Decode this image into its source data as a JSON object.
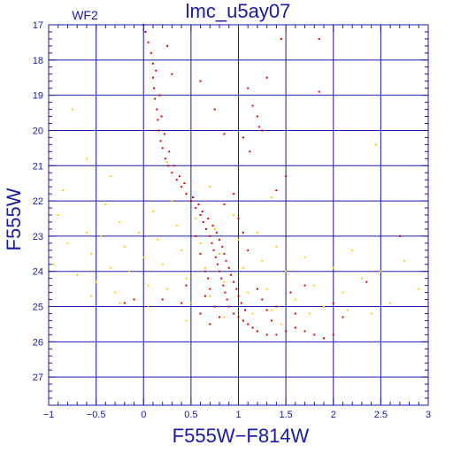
{
  "chart_data": {
    "type": "scatter",
    "title": "lmc_u5ay07",
    "panel_label": "WF2",
    "xlabel": "F555W−F814W",
    "ylabel": "F555W",
    "xlim": [
      -1,
      3
    ],
    "ylim": [
      27.8,
      17
    ],
    "y_inverted": true,
    "grid": true,
    "x_ticks": [
      -1,
      -0.5,
      0,
      0.5,
      1,
      1.5,
      2,
      2.5,
      3
    ],
    "x_tick_labels": [
      "−1",
      "−0.5",
      "0",
      "0.5",
      "1",
      "1.5",
      "2",
      "2.5",
      "3"
    ],
    "y_ticks": [
      17,
      18,
      19,
      20,
      21,
      22,
      23,
      24,
      25,
      26,
      27
    ],
    "y_tick_labels": [
      "17",
      "18",
      "19",
      "20",
      "21",
      "22",
      "23",
      "24",
      "25",
      "26",
      "27"
    ],
    "series": [
      {
        "color": "#ffd000",
        "marker": "dot",
        "points": [
          [
            -0.85,
            21.7
          ],
          [
            -0.9,
            22.4
          ],
          [
            -0.8,
            23.2
          ],
          [
            -0.95,
            23.8
          ],
          [
            -0.7,
            24.1
          ],
          [
            -0.6,
            22.9
          ],
          [
            -0.55,
            23.5
          ],
          [
            -0.5,
            24.3
          ],
          [
            -0.4,
            22.1
          ],
          [
            -0.45,
            23.0
          ],
          [
            -0.35,
            23.9
          ],
          [
            -0.3,
            24.6
          ],
          [
            -0.25,
            22.6
          ],
          [
            -0.2,
            23.3
          ],
          [
            -0.15,
            24.0
          ],
          [
            -0.1,
            24.8
          ],
          [
            -0.05,
            22.9
          ],
          [
            0.0,
            23.6
          ],
          [
            0.05,
            24.4
          ],
          [
            0.1,
            22.3
          ],
          [
            0.15,
            23.1
          ],
          [
            0.2,
            23.8
          ],
          [
            0.25,
            24.5
          ],
          [
            0.3,
            22.0
          ],
          [
            0.35,
            22.7
          ],
          [
            0.4,
            23.4
          ],
          [
            0.45,
            24.2
          ],
          [
            0.5,
            24.9
          ],
          [
            0.55,
            22.5
          ],
          [
            0.6,
            23.2
          ],
          [
            0.65,
            23.9
          ],
          [
            0.7,
            24.7
          ],
          [
            0.75,
            22.8
          ],
          [
            0.8,
            23.5
          ],
          [
            0.85,
            24.3
          ],
          [
            0.9,
            25.0
          ],
          [
            0.95,
            22.4
          ],
          [
            1.0,
            23.1
          ],
          [
            1.05,
            23.9
          ],
          [
            1.1,
            24.6
          ],
          [
            1.15,
            25.2
          ],
          [
            1.2,
            22.9
          ],
          [
            1.25,
            23.7
          ],
          [
            1.3,
            24.5
          ],
          [
            1.35,
            25.1
          ],
          [
            1.4,
            23.3
          ],
          [
            1.5,
            24.0
          ],
          [
            1.6,
            24.8
          ],
          [
            1.7,
            23.6
          ],
          [
            1.8,
            24.4
          ],
          [
            1.9,
            25.0
          ],
          [
            2.0,
            23.9
          ],
          [
            2.1,
            24.6
          ],
          [
            2.2,
            23.4
          ],
          [
            2.3,
            24.2
          ],
          [
            2.4,
            25.2
          ],
          [
            2.5,
            24.0
          ],
          [
            2.6,
            24.9
          ],
          [
            2.75,
            23.7
          ],
          [
            2.9,
            24.5
          ],
          [
            -0.75,
            19.4
          ],
          [
            -0.6,
            20.8
          ],
          [
            -0.35,
            21.3
          ],
          [
            0.25,
            20.9
          ],
          [
            0.7,
            21.6
          ],
          [
            1.35,
            21.9
          ],
          [
            2.45,
            20.4
          ],
          [
            -0.25,
            24.9
          ],
          [
            -0.55,
            24.7
          ],
          [
            0.05,
            25.0
          ],
          [
            0.45,
            25.4
          ],
          [
            0.85,
            25.3
          ],
          [
            1.45,
            25.5
          ],
          [
            1.75,
            25.2
          ],
          [
            2.15,
            25.1
          ]
        ]
      },
      {
        "color": "#e00000",
        "marker": "dot",
        "points": [
          [
            0.0,
            17.0
          ],
          [
            0.02,
            17.2
          ],
          [
            0.05,
            17.5
          ],
          [
            0.08,
            17.8
          ],
          [
            0.1,
            18.1
          ],
          [
            0.1,
            18.5
          ],
          [
            0.11,
            18.8
          ],
          [
            0.12,
            19.1
          ],
          [
            0.14,
            19.4
          ],
          [
            0.15,
            19.7
          ],
          [
            0.16,
            20.0
          ],
          [
            0.18,
            20.3
          ],
          [
            0.2,
            20.5
          ],
          [
            0.23,
            20.8
          ],
          [
            0.26,
            21.0
          ],
          [
            0.3,
            21.2
          ],
          [
            0.35,
            21.4
          ],
          [
            0.4,
            21.6
          ],
          [
            0.45,
            21.8
          ],
          [
            0.5,
            22.0
          ],
          [
            0.55,
            22.2
          ],
          [
            0.6,
            22.4
          ],
          [
            0.63,
            22.6
          ],
          [
            0.66,
            22.8
          ],
          [
            0.7,
            23.0
          ],
          [
            0.72,
            23.2
          ],
          [
            0.74,
            23.4
          ],
          [
            0.76,
            23.6
          ],
          [
            0.78,
            23.8
          ],
          [
            0.8,
            24.0
          ],
          [
            0.82,
            24.2
          ],
          [
            0.84,
            24.4
          ],
          [
            0.86,
            24.6
          ],
          [
            0.88,
            24.8
          ],
          [
            0.9,
            25.0
          ],
          [
            0.95,
            25.2
          ],
          [
            1.0,
            25.3
          ],
          [
            1.05,
            25.4
          ],
          [
            1.1,
            25.5
          ],
          [
            1.15,
            25.6
          ],
          [
            1.2,
            25.7
          ],
          [
            1.3,
            25.8
          ],
          [
            1.4,
            25.8
          ],
          [
            1.5,
            25.7
          ],
          [
            1.6,
            25.6
          ],
          [
            1.7,
            25.7
          ],
          [
            1.8,
            25.8
          ],
          [
            1.9,
            25.9
          ],
          [
            2.0,
            25.8
          ],
          [
            0.13,
            18.3
          ],
          [
            0.17,
            19.0
          ],
          [
            0.19,
            19.6
          ],
          [
            0.22,
            20.1
          ],
          [
            0.27,
            20.6
          ],
          [
            0.32,
            21.0
          ],
          [
            0.38,
            21.3
          ],
          [
            0.43,
            21.5
          ],
          [
            0.52,
            21.9
          ],
          [
            0.58,
            22.1
          ],
          [
            0.62,
            22.3
          ],
          [
            0.68,
            22.5
          ],
          [
            0.73,
            22.7
          ],
          [
            0.77,
            22.9
          ],
          [
            0.8,
            23.1
          ],
          [
            0.83,
            23.3
          ],
          [
            0.85,
            23.5
          ],
          [
            0.87,
            23.7
          ],
          [
            0.9,
            23.9
          ],
          [
            0.92,
            24.1
          ],
          [
            0.95,
            24.3
          ],
          [
            0.98,
            24.5
          ],
          [
            1.0,
            24.7
          ],
          [
            1.03,
            24.9
          ],
          [
            1.07,
            25.1
          ],
          [
            0.55,
            23.0
          ],
          [
            0.6,
            23.5
          ],
          [
            0.65,
            24.0
          ],
          [
            0.7,
            24.5
          ],
          [
            0.75,
            25.0
          ],
          [
            0.8,
            25.3
          ],
          [
            0.7,
            25.5
          ],
          [
            0.6,
            25.2
          ],
          [
            0.65,
            24.7
          ],
          [
            0.68,
            24.2
          ],
          [
            1.2,
            24.5
          ],
          [
            1.25,
            24.8
          ],
          [
            1.3,
            25.1
          ],
          [
            1.35,
            25.4
          ],
          [
            1.4,
            25.0
          ],
          [
            1.1,
            18.8
          ],
          [
            1.15,
            19.3
          ],
          [
            1.2,
            19.6
          ],
          [
            1.25,
            20.0
          ],
          [
            1.05,
            20.2
          ],
          [
            1.3,
            18.5
          ],
          [
            1.22,
            19.9
          ],
          [
            1.12,
            20.6
          ],
          [
            1.4,
            21.7
          ],
          [
            1.5,
            21.3
          ],
          [
            1.45,
            17.4
          ],
          [
            1.85,
            17.4
          ],
          [
            1.85,
            18.9
          ],
          [
            2.35,
            24.3
          ],
          [
            2.7,
            23.0
          ],
          [
            2.0,
            24.9
          ],
          [
            2.1,
            25.3
          ],
          [
            1.6,
            25.2
          ],
          [
            1.55,
            24.6
          ],
          [
            1.7,
            24.4
          ],
          [
            0.95,
            21.8
          ],
          [
            0.85,
            22.1
          ],
          [
            1.0,
            22.5
          ],
          [
            1.05,
            22.9
          ],
          [
            1.1,
            23.4
          ],
          [
            0.45,
            24.4
          ],
          [
            0.4,
            24.9
          ],
          [
            0.2,
            24.8
          ],
          [
            -0.1,
            24.8
          ],
          [
            -0.2,
            24.9
          ],
          [
            0.25,
            17.6
          ],
          [
            0.3,
            18.4
          ],
          [
            0.6,
            18.6
          ],
          [
            0.75,
            19.4
          ],
          [
            0.85,
            20.1
          ]
        ]
      }
    ]
  }
}
